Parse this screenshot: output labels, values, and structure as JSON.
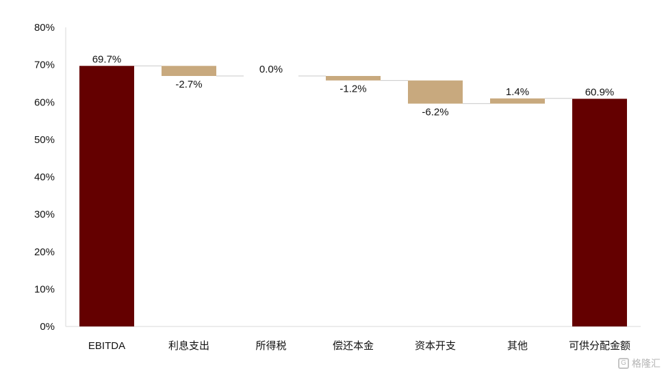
{
  "chart_data": {
    "type": "bar",
    "subtype": "waterfall",
    "categories": [
      "EBITDA",
      "利息支出",
      "所得税",
      "偿还本金",
      "资本开支",
      "其他",
      "可供分配金额"
    ],
    "values": [
      69.7,
      -2.7,
      0.0,
      -1.2,
      -6.2,
      1.4,
      60.9
    ],
    "kinds": [
      "total",
      "delta",
      "delta",
      "delta",
      "delta",
      "delta",
      "total"
    ],
    "data_labels": [
      "69.7%",
      "-2.7%",
      "0.0%",
      "-1.2%",
      "-6.2%",
      "1.4%",
      "60.9%"
    ],
    "ylim": [
      0,
      80
    ],
    "yticks": [
      0,
      10,
      20,
      30,
      40,
      50,
      60,
      70,
      80
    ],
    "ytick_labels": [
      "0%",
      "10%",
      "20%",
      "30%",
      "40%",
      "50%",
      "60%",
      "70%",
      "80%"
    ],
    "title": "",
    "xlabel": "",
    "ylabel": "",
    "grid": false,
    "legend": "none",
    "colors": {
      "total": "#640000",
      "delta": "#c8a97e",
      "connector": "#c8c8c8",
      "axis": "#d9d9d9"
    }
  },
  "watermark": {
    "text": "格隆汇",
    "icon": "g-logo-icon",
    "icon_glyph": "G"
  }
}
